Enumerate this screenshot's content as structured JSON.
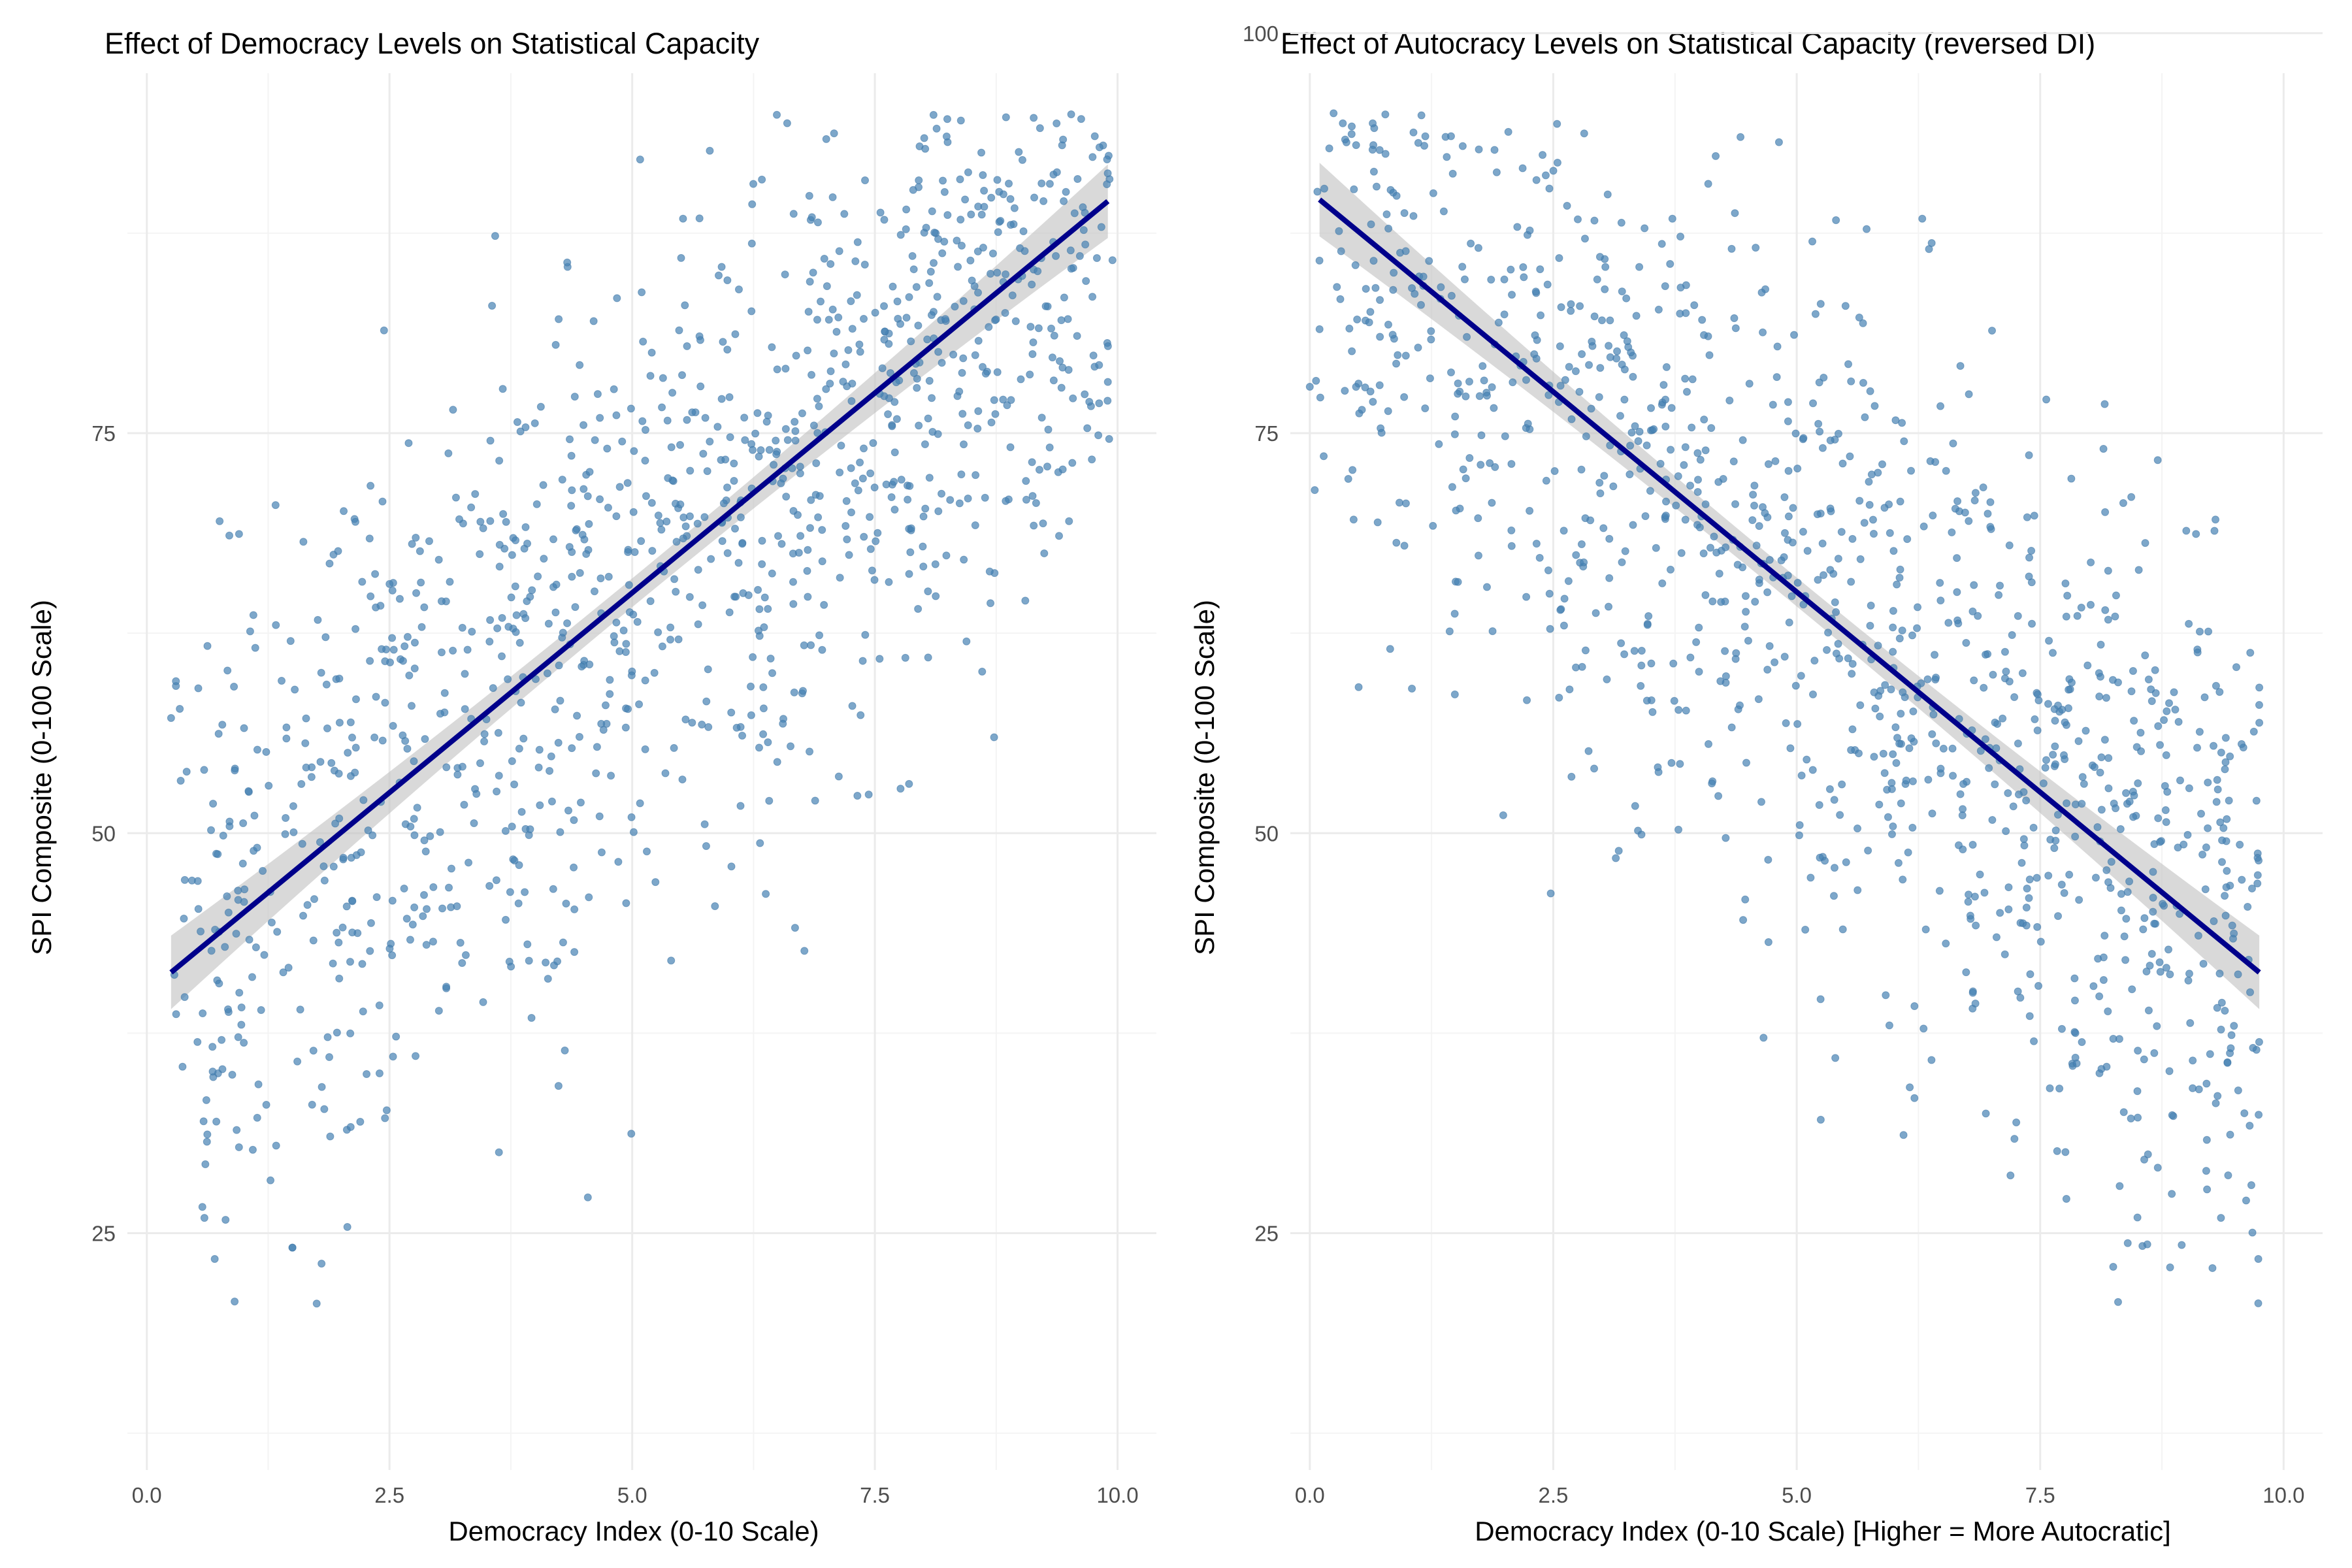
{
  "chart_data": [
    {
      "type": "scatter",
      "title": "Effect of Democracy Levels on Statistical Capacity",
      "xlabel": "Democracy Index (0-10 Scale)",
      "ylabel": "SPI Composite (0-100 Scale)",
      "xlim": [
        -0.2,
        10.4
      ],
      "ylim": [
        10.2,
        97.5
      ],
      "x_ticks": [
        0.0,
        2.5,
        5.0,
        7.5,
        10.0
      ],
      "x_tick_labels": [
        "0.0",
        "2.5",
        "5.0",
        "7.5",
        "10.0"
      ],
      "y_ticks": [
        25,
        50,
        75
      ],
      "y_tick_labels": [
        "25",
        "50",
        "75"
      ],
      "grid": true,
      "point_color": "#4682b4",
      "fit_color": "#00008b",
      "band_color": "#bfbfbf",
      "fit_line": {
        "x_start": 0.25,
        "y_start": 41.3,
        "x_end": 9.9,
        "y_end": 89.5
      },
      "point_generator": {
        "direction": "increasing",
        "count": 1150,
        "x_min": 0.25,
        "x_max": 9.95,
        "y_min": 20,
        "y_max": 95,
        "seed": 7
      },
      "points_x": [
        0.25,
        0.3,
        0.3,
        0.75,
        0.85,
        0.95,
        1.1,
        1.15,
        1.5,
        1.5,
        1.75,
        1.8,
        9.5,
        9.9
      ],
      "points_y": [
        57.2,
        59.2,
        59.5,
        69.5,
        68.6,
        68.7,
        48.9,
        34.3,
        24.1,
        24.1,
        20.6,
        23.1,
        69.5,
        78.2
      ]
    },
    {
      "type": "scatter",
      "title": "Effect of Autocracy Levels on Statistical Capacity (reversed DI)",
      "xlabel": "Democracy Index (0-10 Scale) [Higher = More Autocratic]",
      "ylabel": "SPI Composite (0-100 Scale)",
      "xlim": [
        -0.2,
        10.4
      ],
      "ylim": [
        10.2,
        97.5
      ],
      "x_ticks": [
        0.0,
        2.5,
        5.0,
        7.5,
        10.0
      ],
      "x_tick_labels": [
        "0.0",
        "2.5",
        "5.0",
        "7.5",
        "10.0"
      ],
      "y_ticks": [
        25,
        50,
        75,
        100
      ],
      "y_tick_labels": [
        "25",
        "50",
        "75",
        "100"
      ],
      "grid": true,
      "point_color": "#4682b4",
      "fit_color": "#00008b",
      "band_color": "#bfbfbf",
      "fit_line": {
        "x_start": 0.1,
        "y_start": 89.6,
        "x_end": 9.75,
        "y_end": 41.3
      },
      "point_generator": {
        "direction": "decreasing",
        "count": 1150,
        "x_min": 0.05,
        "x_max": 9.75,
        "y_min": 20,
        "y_max": 95,
        "seed": 11
      },
      "points_x": [
        0.0,
        0.1,
        0.2,
        0.45,
        0.5,
        9.0,
        9.1,
        9.3,
        9.75,
        9.75,
        8.25,
        8.3,
        8.55,
        8.6
      ],
      "points_y": [
        77.9,
        81.5,
        92.8,
        69.6,
        78.1,
        68.9,
        68.7,
        69.6,
        59.1,
        56.9,
        22.9,
        20.7,
        24.2,
        24.3
      ]
    }
  ]
}
